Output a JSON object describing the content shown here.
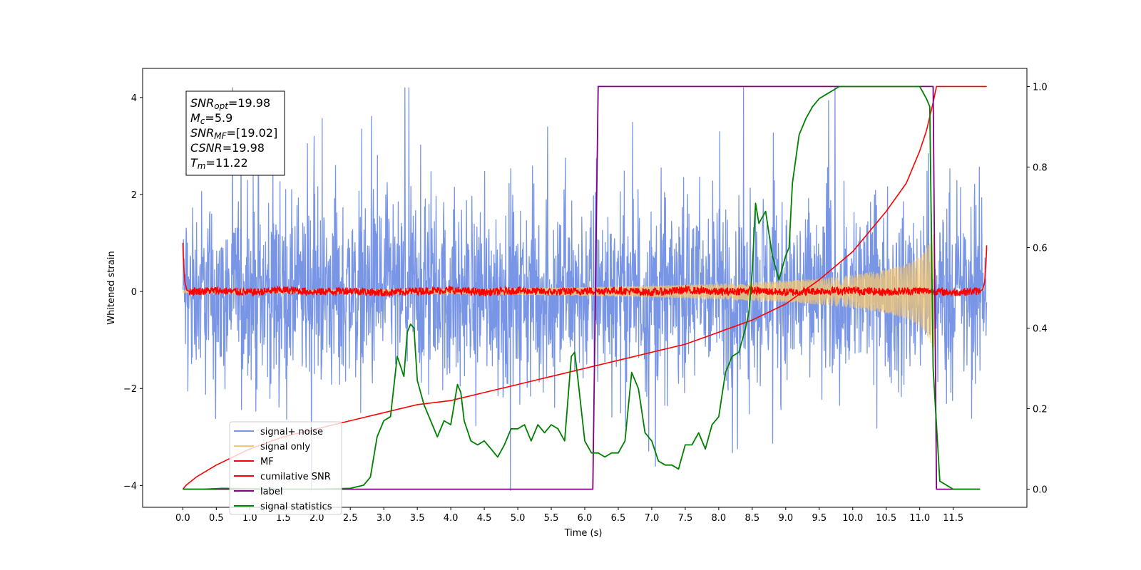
{
  "chart_data": {
    "type": "line",
    "xlabel": "Time (s)",
    "ylabel": "Whitened strain",
    "xlim": [
      -0.6,
      12.6
    ],
    "ylim": [
      -4.45,
      4.6
    ],
    "y2lim": [
      -0.045,
      1.045
    ],
    "x_ticks": [
      0.0,
      0.5,
      1.0,
      1.5,
      2.0,
      2.5,
      3.0,
      3.5,
      4.0,
      4.5,
      5.0,
      5.5,
      6.0,
      6.5,
      7.0,
      7.5,
      8.0,
      8.5,
      9.0,
      9.5,
      10.0,
      10.5,
      11.0,
      11.5
    ],
    "x_tick_labels": [
      "0.0",
      "0.5",
      "1.0",
      "1.5",
      "2.0",
      "2.5",
      "3.0",
      "3.5",
      "4.0",
      "4.5",
      "5.0",
      "5.5",
      "6.0",
      "6.5",
      "7.0",
      "7.5",
      "8.0",
      "8.5",
      "9.0",
      "9.5",
      "10.0",
      "10.5",
      "11.0",
      "11.5"
    ],
    "y_ticks": [
      -4,
      -2,
      0,
      2,
      4
    ],
    "y_tick_labels": [
      "−4",
      "−2",
      "0",
      "2",
      "4"
    ],
    "y2_ticks": [
      0.0,
      0.2,
      0.4,
      0.6,
      0.8,
      1.0
    ],
    "y2_tick_labels": [
      "0.0",
      "0.2",
      "0.4",
      "0.6",
      "0.8",
      "1.0"
    ],
    "grid": false,
    "legend_position": "lower-left",
    "annotation": [
      {
        "var": "SNR",
        "sub": "opt",
        "value": "=19.98"
      },
      {
        "var": "M",
        "sub": "c",
        "value": "=5.9"
      },
      {
        "var": "SNR",
        "sub": "MF",
        "value": "=[19.02]"
      },
      {
        "var": "CSNR",
        "sub": "",
        "value": "=19.98"
      },
      {
        "var": "T",
        "sub": "m",
        "value": "=11.22"
      }
    ],
    "series": [
      {
        "name": "signal+ noise",
        "color": "#7895e6",
        "axis": "left",
        "style": "noise",
        "t_range": [
          0.0,
          12.0
        ],
        "amplitude_range": [
          -4.1,
          4.2
        ],
        "y": [
          0.2,
          1.1,
          -0.9,
          2.2,
          -1.7,
          0.5,
          3.1,
          -2.3,
          1.4,
          -0.3,
          2.6,
          -3.3,
          0.8,
          1.9,
          -1.2,
          3.4,
          -2.7,
          0.1,
          2.4,
          -1.9,
          1.2,
          -2.9,
          3.2,
          -0.6,
          1.7,
          -3.5,
          2.9,
          0.4,
          -2.2,
          4.1,
          -1.3,
          2.1,
          -2.6,
          0.9,
          3.0,
          -3.1,
          1.6,
          -0.8,
          2.8,
          -2.4,
          0.6,
          3.5,
          -1.8,
          1.3,
          -3.0,
          2.3,
          -0.4,
          3.3,
          -2.5,
          1.0
        ]
      },
      {
        "name": "signal only",
        "color": "#f5c870",
        "axis": "left",
        "style": "chirp",
        "t_range": [
          0.0,
          11.22
        ],
        "envelope": {
          "t": [
            0.0,
            2.0,
            4.0,
            6.0,
            7.0,
            8.0,
            9.0,
            9.5,
            10.0,
            10.5,
            10.8,
            11.0,
            11.1,
            11.2
          ],
          "amp": [
            0.02,
            0.03,
            0.05,
            0.09,
            0.12,
            0.16,
            0.22,
            0.27,
            0.34,
            0.45,
            0.56,
            0.72,
            0.88,
            1.2
          ]
        }
      },
      {
        "name": "MF",
        "color": "#ff0000",
        "axis": "left",
        "style": "line",
        "x": [
          0.0,
          0.01,
          0.03,
          0.06,
          0.1,
          0.5,
          1.0,
          1.5,
          2.0,
          2.5,
          3.0,
          3.5,
          4.0,
          4.5,
          5.0,
          5.5,
          6.0,
          6.5,
          7.0,
          7.5,
          8.0,
          8.5,
          9.0,
          9.5,
          10.0,
          10.5,
          11.0,
          11.5,
          11.9,
          11.94,
          11.97,
          11.99,
          12.0
        ],
        "y": [
          1.0,
          0.6,
          0.2,
          0.03,
          0.0,
          0.02,
          -0.02,
          0.03,
          -0.01,
          0.02,
          -0.03,
          0.01,
          0.03,
          -0.02,
          0.02,
          -0.01,
          0.01,
          0.02,
          -0.02,
          0.03,
          -0.01,
          0.02,
          -0.02,
          0.01,
          0.02,
          -0.01,
          0.02,
          -0.02,
          0.01,
          0.04,
          0.2,
          0.6,
          0.95
        ]
      },
      {
        "name": "cumilative SNR",
        "color": "#ff0000",
        "axis": "right",
        "style": "line",
        "x": [
          0.0,
          0.05,
          0.2,
          0.5,
          1.0,
          1.5,
          2.0,
          2.5,
          3.0,
          3.5,
          4.0,
          4.5,
          5.0,
          5.5,
          6.0,
          6.5,
          7.0,
          7.5,
          8.0,
          8.5,
          9.0,
          9.5,
          10.0,
          10.5,
          10.8,
          11.0,
          11.1,
          11.2,
          11.25,
          12.0
        ],
        "y": [
          0.0,
          0.01,
          0.03,
          0.06,
          0.1,
          0.13,
          0.15,
          0.17,
          0.19,
          0.21,
          0.22,
          0.24,
          0.26,
          0.28,
          0.3,
          0.32,
          0.34,
          0.36,
          0.39,
          0.42,
          0.46,
          0.52,
          0.59,
          0.69,
          0.76,
          0.84,
          0.89,
          0.96,
          1.0,
          1.0
        ]
      },
      {
        "name": "label",
        "color": "#800080",
        "axis": "right",
        "style": "line",
        "x": [
          0.0,
          6.12,
          6.2,
          11.2,
          11.25,
          11.9
        ],
        "y": [
          0.0,
          0.0,
          1.0,
          1.0,
          0.0,
          0.0
        ]
      },
      {
        "name": "signal statistics",
        "color": "#008000",
        "axis": "right",
        "style": "line",
        "x": [
          0.0,
          0.3,
          0.6,
          1.0,
          1.5,
          2.0,
          2.5,
          2.7,
          2.8,
          2.9,
          3.0,
          3.1,
          3.2,
          3.3,
          3.35,
          3.4,
          3.45,
          3.5,
          3.6,
          3.7,
          3.8,
          3.9,
          4.0,
          4.1,
          4.15,
          4.2,
          4.3,
          4.4,
          4.5,
          4.6,
          4.7,
          4.8,
          4.9,
          5.0,
          5.1,
          5.2,
          5.3,
          5.4,
          5.5,
          5.6,
          5.7,
          5.8,
          5.85,
          5.9,
          6.0,
          6.1,
          6.2,
          6.3,
          6.4,
          6.5,
          6.6,
          6.7,
          6.8,
          6.9,
          7.0,
          7.1,
          7.2,
          7.3,
          7.4,
          7.5,
          7.6,
          7.7,
          7.8,
          7.9,
          8.0,
          8.1,
          8.2,
          8.3,
          8.4,
          8.45,
          8.5,
          8.55,
          8.6,
          8.7,
          8.8,
          8.9,
          9.0,
          9.05,
          9.1,
          9.2,
          9.3,
          9.4,
          9.5,
          9.6,
          9.7,
          9.8,
          10.0,
          10.5,
          11.0,
          11.1,
          11.15,
          11.2,
          11.3,
          11.5,
          11.9
        ],
        "y": [
          0.0,
          0.0,
          0.002,
          0.001,
          0.0,
          0.0,
          0.002,
          0.01,
          0.03,
          0.13,
          0.17,
          0.18,
          0.33,
          0.28,
          0.39,
          0.41,
          0.4,
          0.27,
          0.21,
          0.17,
          0.13,
          0.17,
          0.16,
          0.26,
          0.24,
          0.17,
          0.12,
          0.11,
          0.12,
          0.1,
          0.08,
          0.11,
          0.15,
          0.15,
          0.16,
          0.12,
          0.16,
          0.14,
          0.16,
          0.15,
          0.12,
          0.33,
          0.34,
          0.27,
          0.12,
          0.09,
          0.09,
          0.08,
          0.09,
          0.09,
          0.12,
          0.29,
          0.25,
          0.14,
          0.12,
          0.07,
          0.06,
          0.06,
          0.05,
          0.11,
          0.11,
          0.14,
          0.1,
          0.16,
          0.18,
          0.29,
          0.33,
          0.34,
          0.4,
          0.44,
          0.54,
          0.71,
          0.66,
          0.69,
          0.58,
          0.52,
          0.58,
          0.6,
          0.76,
          0.88,
          0.92,
          0.95,
          0.97,
          0.98,
          0.99,
          1.0,
          1.0,
          1.0,
          1.0,
          0.97,
          0.95,
          0.3,
          0.02,
          0.0,
          0.0
        ]
      }
    ]
  }
}
